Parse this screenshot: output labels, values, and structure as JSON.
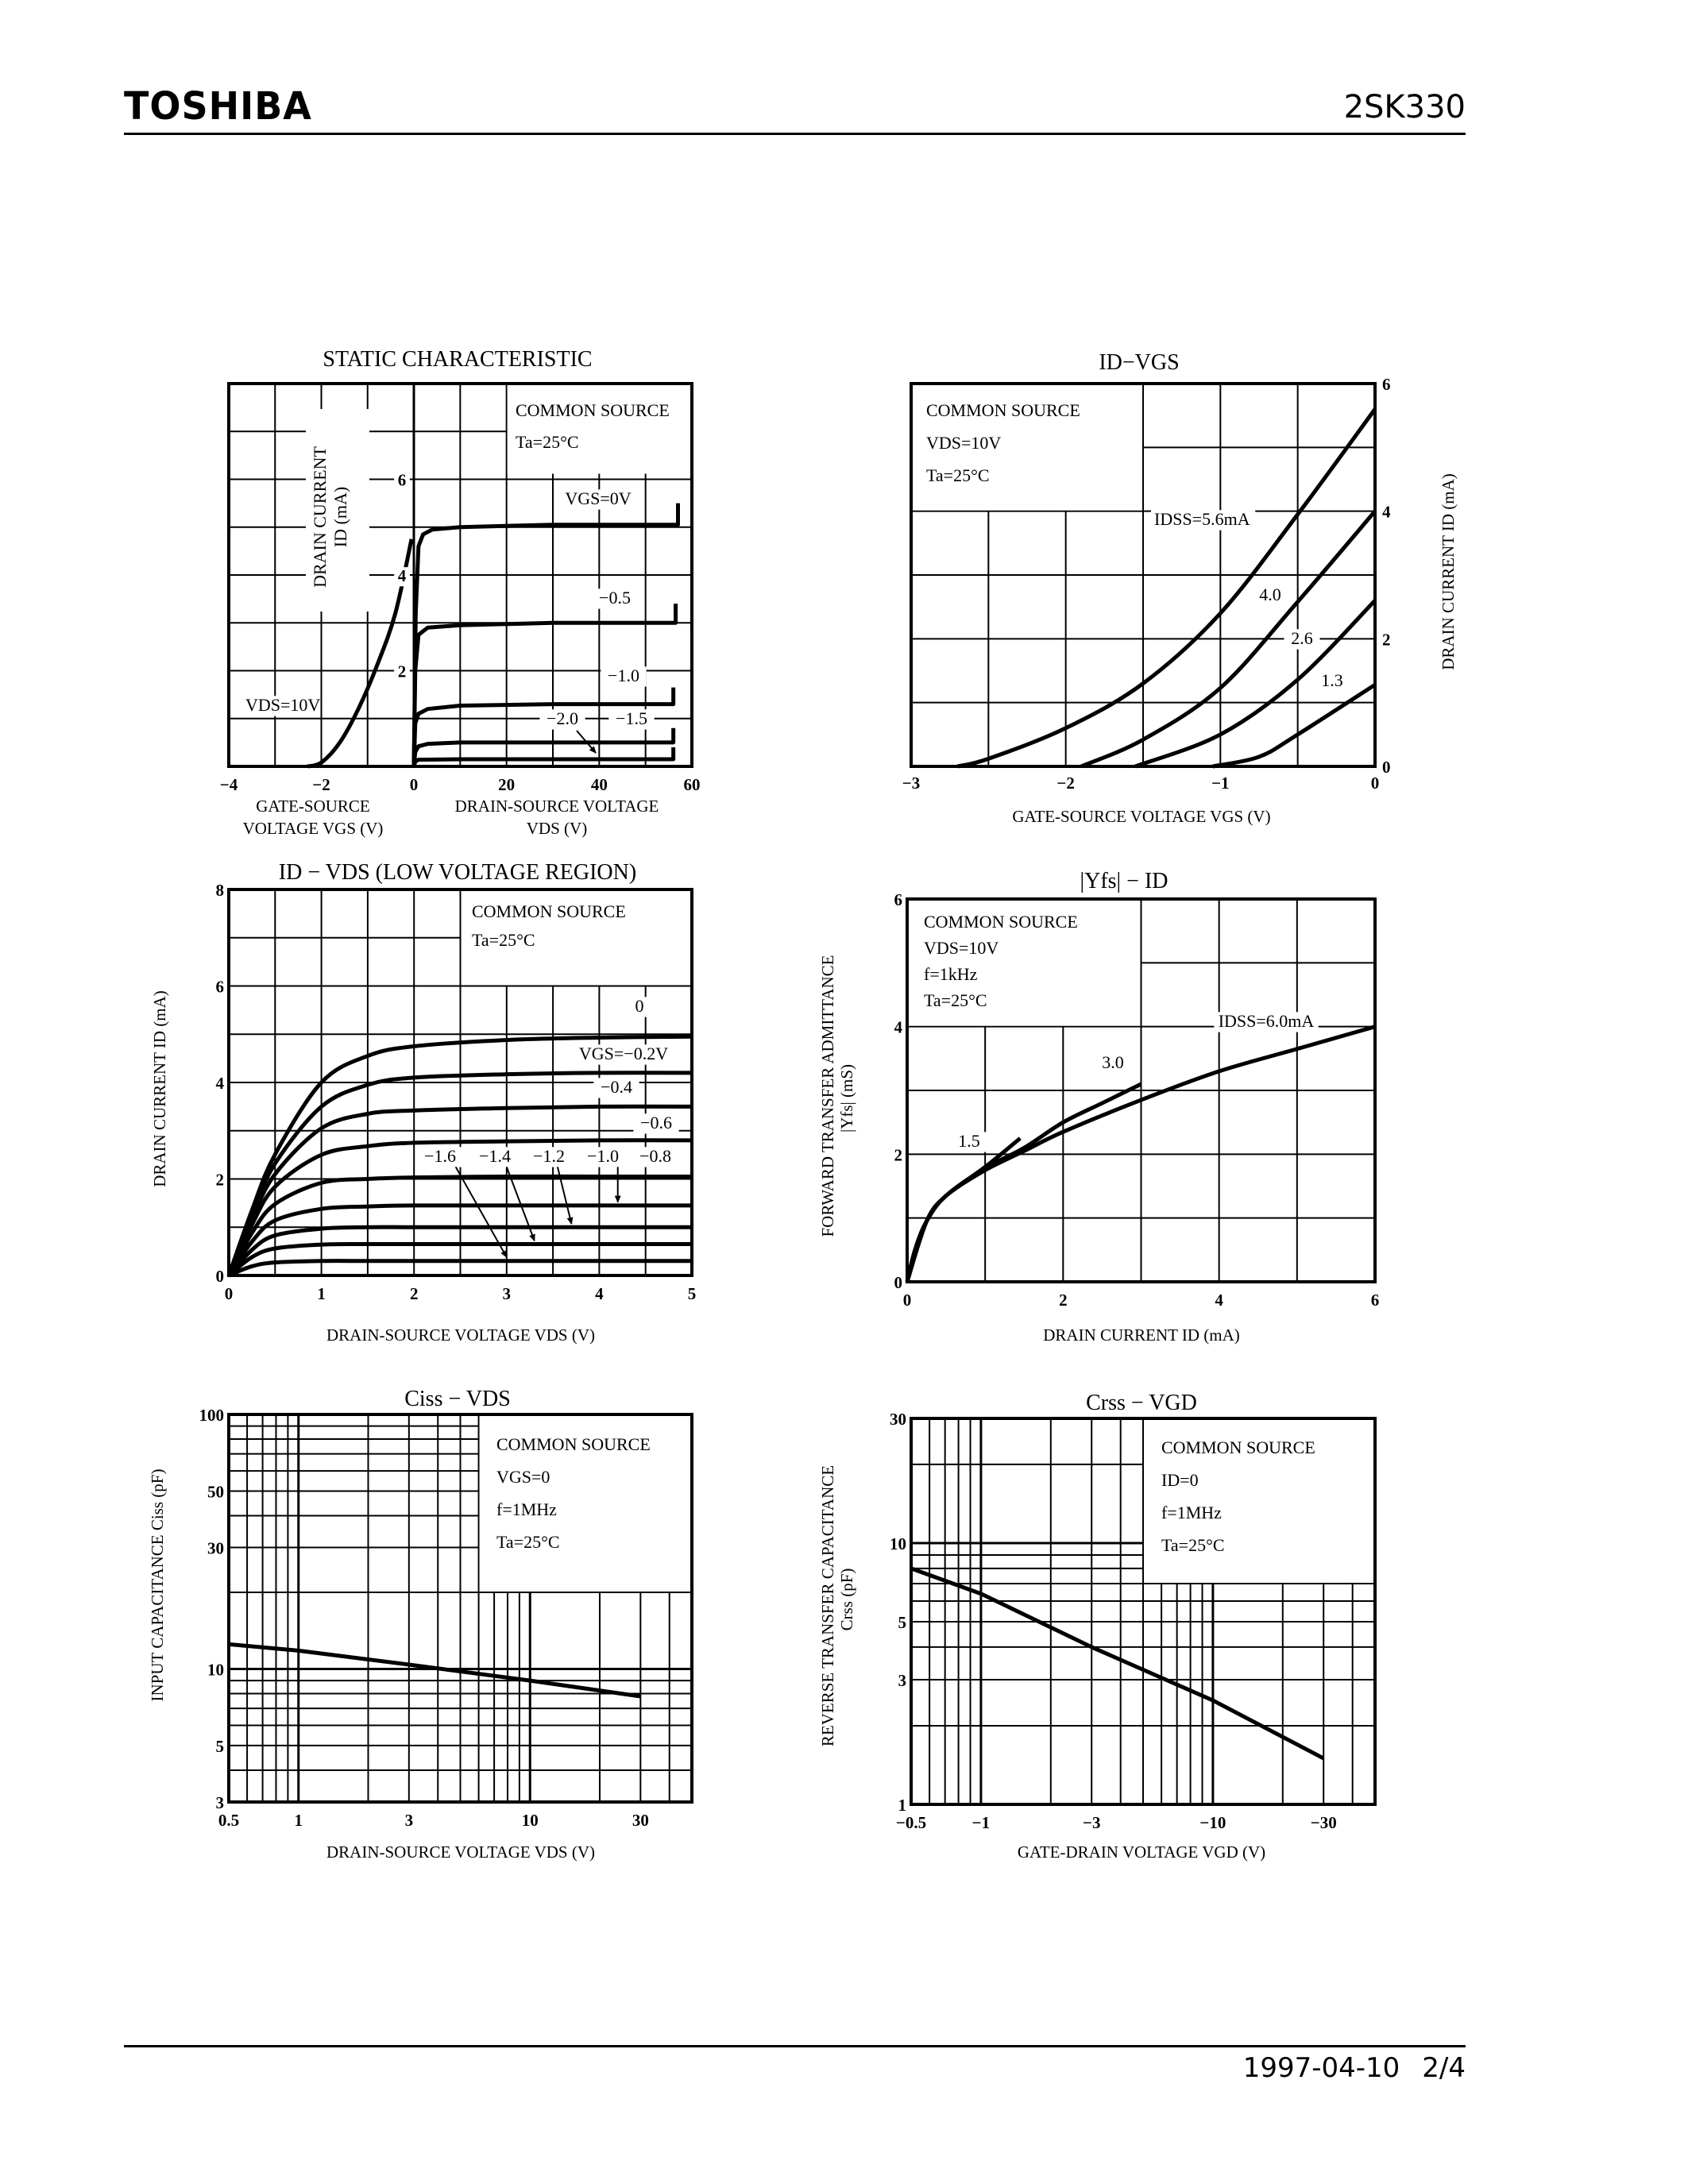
{
  "header": {
    "brand": "TOSHIBA",
    "part": "2SK330"
  },
  "footer": {
    "date": "1997-04-10",
    "page": "2/4"
  },
  "chart_data": [
    {
      "type": "line",
      "title": "STATIC CHARACTERISTIC",
      "ylabel": [
        "DRAIN CURRENT",
        "ID  (mA)"
      ],
      "ylim": [
        0,
        8
      ],
      "yticks": [
        2,
        4,
        6
      ],
      "ytick_labels": [
        "2",
        "4",
        "6"
      ],
      "conditions": [
        "COMMON SOURCE",
        "Ta=25°C"
      ],
      "grid": true,
      "left_panel": {
        "xlabel": [
          "GATE-SOURCE",
          "VOLTAGE   VGS   (V)"
        ],
        "xlim": [
          -4,
          0
        ],
        "xticks": [
          -4,
          -2,
          0
        ],
        "xtick_labels": [
          "−4",
          "−2",
          "0"
        ],
        "series": [
          {
            "name": "VDS=10V",
            "x": [
              -2.3,
              -2,
              -1.6,
              -1.2,
              -0.8,
              -0.4,
              -0.05
            ],
            "y": [
              0,
              0.08,
              0.5,
              1.2,
              2.1,
              3.2,
              4.75
            ]
          }
        ]
      },
      "right_panel": {
        "xlabel": [
          "DRAIN-SOURCE VOLTAGE",
          "VDS   (V)"
        ],
        "xlim": [
          0,
          60
        ],
        "xticks": [
          20,
          40,
          60
        ],
        "xtick_labels": [
          "20",
          "40",
          "60"
        ],
        "series": [
          {
            "name": "VGS=0V",
            "x": [
              0,
              0.4,
              1,
              2,
              4,
              10,
              30,
              57,
              57
            ],
            "y": [
              0,
              3.2,
              4.6,
              4.85,
              4.95,
              5.0,
              5.05,
              5.05,
              5.5
            ]
          },
          {
            "name": "−0.5",
            "x": [
              0,
              0.3,
              1,
              3,
              10,
              30,
              56.5,
              56.5
            ],
            "y": [
              0,
              2.0,
              2.75,
              2.9,
              2.95,
              3.0,
              3.0,
              3.4
            ]
          },
          {
            "name": "−1.0",
            "x": [
              0,
              0.3,
              1,
              3,
              10,
              30,
              56,
              56
            ],
            "y": [
              0,
              0.9,
              1.1,
              1.2,
              1.27,
              1.3,
              1.3,
              1.65
            ]
          },
          {
            "name": "−1.5",
            "x": [
              0,
              0.3,
              1,
              3,
              10,
              56,
              56
            ],
            "y": [
              0,
              0.3,
              0.42,
              0.47,
              0.5,
              0.5,
              0.8
            ]
          },
          {
            "name": "−2.0",
            "x": [
              0,
              0.3,
              1,
              10,
              56,
              56
            ],
            "y": [
              0,
              0.1,
              0.14,
              0.15,
              0.15,
              0.4
            ]
          }
        ]
      }
    },
    {
      "type": "line",
      "title": "ID−VGS",
      "xlabel": "GATE-SOURCE VOLTAGE   VGS   (V)",
      "ylabel": "DRAIN CURRENT   ID   (mA)",
      "xlim": [
        -3,
        0
      ],
      "ylim": [
        0,
        6
      ],
      "xticks": [
        -3,
        -2,
        -1,
        0
      ],
      "xtick_labels": [
        "−3",
        "−2",
        "−1",
        "0"
      ],
      "yticks": [
        0,
        2,
        4,
        6
      ],
      "ytick_labels": [
        "0",
        "2",
        "4",
        "6"
      ],
      "conditions": [
        "COMMON SOURCE",
        "VDS=10V",
        "Ta=25°C"
      ],
      "grid": true,
      "series": [
        {
          "name": "IDSS=5.6mA",
          "x": [
            -2.7,
            -2.5,
            -2,
            -1.5,
            -1,
            -0.5,
            0
          ],
          "y": [
            0,
            0.12,
            0.6,
            1.3,
            2.4,
            3.95,
            5.6
          ]
        },
        {
          "name": "4.0",
          "x": [
            -1.9,
            -1.5,
            -1,
            -0.5,
            0
          ],
          "y": [
            0,
            0.42,
            1.23,
            2.58,
            4.0
          ]
        },
        {
          "name": "2.6",
          "x": [
            -1.55,
            -1,
            -0.5,
            0
          ],
          "y": [
            0,
            0.5,
            1.36,
            2.6
          ]
        },
        {
          "name": "1.3",
          "x": [
            -1.05,
            -0.75,
            -0.5,
            0
          ],
          "y": [
            0,
            0.15,
            0.5,
            1.28
          ]
        }
      ]
    },
    {
      "type": "line",
      "title": "ID − VDS (LOW VOLTAGE REGION)",
      "xlabel": "DRAIN-SOURCE VOLTAGE   VDS   (V)",
      "ylabel": "DRAIN CURRENT   ID   (mA)",
      "xlim": [
        0,
        5
      ],
      "ylim": [
        0,
        8
      ],
      "xticks": [
        0,
        1,
        2,
        3,
        4,
        5
      ],
      "xtick_labels": [
        "0",
        "1",
        "2",
        "3",
        "4",
        "5"
      ],
      "yticks": [
        0,
        2,
        4,
        6,
        8
      ],
      "ytick_labels": [
        "0",
        "2",
        "4",
        "6",
        "8"
      ],
      "conditions": [
        "COMMON SOURCE",
        "Ta=25°C"
      ],
      "grid": true,
      "series": [
        {
          "name": "0",
          "x": [
            0,
            0.25,
            0.5,
            1,
            1.5,
            2,
            3,
            4,
            5
          ],
          "y": [
            0,
            1.35,
            2.51,
            4.0,
            4.55,
            4.75,
            4.88,
            4.93,
            4.95
          ]
        },
        {
          "name": "VGS=−0.2V",
          "x": [
            0,
            0.25,
            0.5,
            1,
            1.5,
            2,
            3,
            4,
            5
          ],
          "y": [
            0,
            1.26,
            2.32,
            3.5,
            3.95,
            4.1,
            4.17,
            4.2,
            4.2
          ]
        },
        {
          "name": "−0.4",
          "x": [
            0,
            0.25,
            0.5,
            1,
            1.5,
            2,
            3,
            4,
            5
          ],
          "y": [
            0,
            1.17,
            2.1,
            3.05,
            3.35,
            3.42,
            3.47,
            3.5,
            3.5
          ]
        },
        {
          "name": "−0.6",
          "x": [
            0,
            0.25,
            0.5,
            1,
            1.5,
            2,
            3,
            4,
            5
          ],
          "y": [
            0,
            1.05,
            1.84,
            2.5,
            2.68,
            2.75,
            2.78,
            2.8,
            2.8
          ]
        },
        {
          "name": "−0.8",
          "x": [
            0,
            0.25,
            0.5,
            1,
            1.5,
            2,
            3,
            4,
            5
          ],
          "y": [
            0,
            0.88,
            1.48,
            1.92,
            2.0,
            2.03,
            2.05,
            2.05,
            2.05
          ]
        },
        {
          "name": "−1.0",
          "x": [
            0,
            0.25,
            0.5,
            1,
            1.5,
            2,
            3,
            4,
            5
          ],
          "y": [
            0,
            0.7,
            1.14,
            1.38,
            1.43,
            1.45,
            1.45,
            1.45,
            1.45
          ]
        },
        {
          "name": "−1.2",
          "x": [
            0,
            0.25,
            0.5,
            1,
            1.5,
            2,
            3,
            4,
            5
          ],
          "y": [
            0,
            0.53,
            0.83,
            0.97,
            1.0,
            1.0,
            1.0,
            1.0,
            1.0
          ]
        },
        {
          "name": "−1.4",
          "x": [
            0,
            0.25,
            0.5,
            1,
            1.5,
            2,
            3,
            4,
            5
          ],
          "y": [
            0,
            0.38,
            0.56,
            0.64,
            0.65,
            0.65,
            0.65,
            0.65,
            0.65
          ]
        },
        {
          "name": "−1.6",
          "x": [
            0,
            0.25,
            0.5,
            1,
            1.5,
            2,
            3,
            4,
            5
          ],
          "y": [
            0,
            0.19,
            0.27,
            0.3,
            0.3,
            0.3,
            0.3,
            0.3,
            0.3
          ]
        }
      ]
    },
    {
      "type": "line",
      "title": "|Yfs| − ID",
      "xlabel": "DRAIN CURRENT   ID   (mA)",
      "ylabel": [
        "FORWARD TRANSFER ADMITTANCE",
        "|Yfs|   (mS)"
      ],
      "xlim": [
        0,
        6
      ],
      "ylim": [
        0,
        6
      ],
      "xticks": [
        0,
        2,
        4,
        6
      ],
      "xtick_labels": [
        "0",
        "2",
        "4",
        "6"
      ],
      "yticks": [
        0,
        2,
        4,
        6
      ],
      "ytick_labels": [
        "0",
        "2",
        "4",
        "6"
      ],
      "conditions": [
        "COMMON SOURCE",
        "VDS=10V",
        "f=1kHz",
        "Ta=25°C"
      ],
      "grid": true,
      "series": [
        {
          "name": "IDSS=6.0mA",
          "x": [
            0,
            0.1,
            0.25,
            0.5,
            1,
            1.5,
            2,
            3,
            4,
            5,
            6
          ],
          "y": [
            0,
            0.5,
            0.95,
            1.35,
            1.75,
            2.05,
            2.35,
            2.85,
            3.3,
            3.65,
            4.0
          ]
        },
        {
          "name": "3.0",
          "x": [
            0,
            0.25,
            0.5,
            1,
            1.5,
            2,
            2.5,
            3
          ],
          "y": [
            0,
            0.95,
            1.35,
            1.78,
            2.1,
            2.5,
            2.8,
            3.1
          ]
        },
        {
          "name": "1.5",
          "x": [
            0,
            0.25,
            0.5,
            1,
            1.45
          ],
          "y": [
            0,
            0.95,
            1.35,
            1.8,
            2.25
          ]
        }
      ]
    },
    {
      "type": "line",
      "title": "Ciss − VDS",
      "xlabel": "DRAIN-SOURCE VOLTAGE   VDS   (V)",
      "ylabel": "INPUT CAPACITANCE   Ciss   (pF)",
      "xscale": "log",
      "yscale": "log",
      "xlim": [
        0.5,
        50
      ],
      "ylim": [
        3,
        100
      ],
      "xticks": [
        0.5,
        1,
        3,
        10,
        30
      ],
      "xtick_labels": [
        "0.5",
        "1",
        "3",
        "10",
        "30"
      ],
      "yticks": [
        3,
        5,
        10,
        30,
        50,
        100
      ],
      "ytick_labels": [
        "3",
        "5",
        "10",
        "30",
        "50",
        "100"
      ],
      "conditions": [
        "COMMON SOURCE",
        "VGS=0",
        "f=1MHz",
        "Ta=25°C"
      ],
      "grid": true,
      "series": [
        {
          "x": [
            0.5,
            1,
            3,
            10,
            30
          ],
          "y": [
            12.5,
            11.8,
            10.4,
            9.0,
            7.8
          ]
        }
      ]
    },
    {
      "type": "line",
      "title": "Crss − VGD",
      "xlabel": "GATE-DRAIN VOLTAGE   VGD   (V)",
      "ylabel": [
        "REVERSE TRANSFER CAPACITANCE",
        "Crss   (pF)"
      ],
      "xscale": "log",
      "yscale": "log",
      "xlim": [
        -0.5,
        -50
      ],
      "ylim": [
        1,
        30
      ],
      "xticks": [
        -0.5,
        -1,
        -3,
        -10,
        -30
      ],
      "xtick_labels": [
        "−0.5",
        "−1",
        "−3",
        "−10",
        "−30"
      ],
      "yticks": [
        1,
        3,
        5,
        10,
        30
      ],
      "ytick_labels": [
        "1",
        "3",
        "5",
        "10",
        "30"
      ],
      "conditions": [
        "COMMON SOURCE",
        "ID=0",
        "f=1MHz",
        "Ta=25°C"
      ],
      "grid": true,
      "series": [
        {
          "x": [
            -0.5,
            -1,
            -3,
            -10,
            -30
          ],
          "y": [
            8.0,
            6.4,
            4.0,
            2.5,
            1.5
          ]
        }
      ]
    }
  ]
}
